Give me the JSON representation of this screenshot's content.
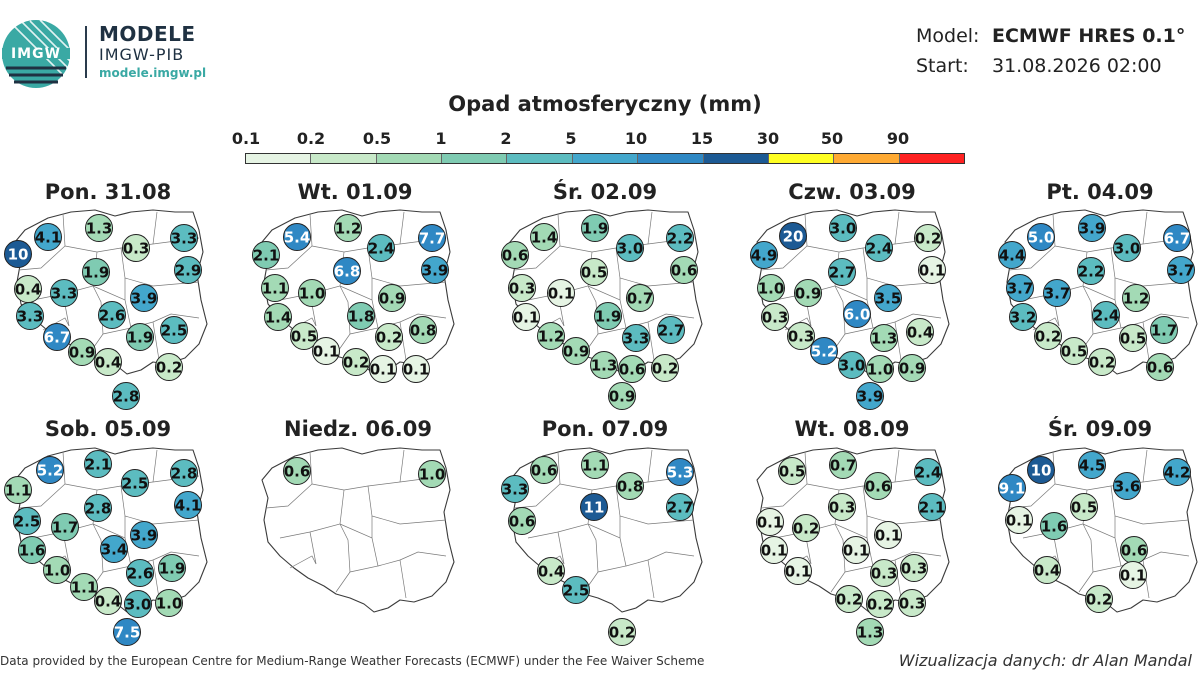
{
  "header": {
    "logo_text": "IMGW",
    "brand_title": "MODELE",
    "brand_subtitle": "IMGW-PIB",
    "brand_url": "modele.imgw.pl",
    "model_label": "Model:",
    "model_value": "ECMWF HRES 0.1°",
    "start_label": "Start:",
    "start_value": "31.08.2026 02:00"
  },
  "colorbar": {
    "title": "Opad atmosferyczny (mm)",
    "ticks": [
      "0.1",
      "0.2",
      "0.5",
      "1",
      "2",
      "5",
      "10",
      "15",
      "30",
      "50",
      "90"
    ],
    "colors": [
      "#e6f4e4",
      "#c8e9c9",
      "#a3dab5",
      "#7fcbb2",
      "#5cbcc0",
      "#43a7cc",
      "#2f88c4",
      "#1c5a94",
      "#ffff22",
      "#ffaa33",
      "#ff2222"
    ]
  },
  "panels": [
    {
      "title": "Pon. 31.08",
      "points": [
        {
          "v": "4.1",
          "c": "#43a7cc"
        },
        {
          "v": "1.3",
          "c": "#a3dab5"
        },
        {
          "v": "3.3",
          "c": "#5cbcc0"
        },
        {
          "v": "10",
          "c": "#1c5a94"
        },
        {
          "v": "0.3",
          "c": "#c8e9c9"
        },
        {
          "v": "2.9",
          "c": "#5cbcc0"
        },
        {
          "v": "0.4",
          "c": "#c8e9c9"
        },
        {
          "v": "1.9",
          "c": "#7fcbb2"
        },
        {
          "v": "3.3",
          "c": "#5cbcc0"
        },
        {
          "v": "3.3",
          "c": "#5cbcc0"
        },
        {
          "v": "2.6",
          "c": "#5cbcc0"
        },
        {
          "v": "3.9",
          "c": "#43a7cc"
        },
        {
          "v": "6.7",
          "c": "#2f88c4"
        },
        {
          "v": "1.9",
          "c": "#7fcbb2"
        },
        {
          "v": "2.5",
          "c": "#5cbcc0"
        },
        {
          "v": "0.9",
          "c": "#a3dab5"
        },
        {
          "v": "0.4",
          "c": "#c8e9c9"
        },
        {
          "v": "0.2",
          "c": "#c8e9c9"
        },
        {
          "v": "2.8",
          "c": "#5cbcc0"
        }
      ]
    },
    {
      "title": "Wt. 01.09",
      "points": [
        {
          "v": "5.4",
          "c": "#2f88c4"
        },
        {
          "v": "1.2",
          "c": "#a3dab5"
        },
        {
          "v": "7.7",
          "c": "#2f88c4"
        },
        {
          "v": "2.1",
          "c": "#7fcbb2"
        },
        {
          "v": "2.4",
          "c": "#5cbcc0"
        },
        {
          "v": "3.9",
          "c": "#43a7cc"
        },
        {
          "v": "6.8",
          "c": "#2f88c4"
        },
        {
          "v": "1.1",
          "c": "#a3dab5"
        },
        {
          "v": "1.0",
          "c": "#a3dab5"
        },
        {
          "v": "0.9",
          "c": "#a3dab5"
        },
        {
          "v": "1.4",
          "c": "#a3dab5"
        },
        {
          "v": "1.8",
          "c": "#7fcbb2"
        },
        {
          "v": "0.5",
          "c": "#c8e9c9"
        },
        {
          "v": "0.2",
          "c": "#c8e9c9"
        },
        {
          "v": "0.8",
          "c": "#a3dab5"
        },
        {
          "v": "0.1",
          "c": "#e6f4e4"
        },
        {
          "v": "0.2",
          "c": "#c8e9c9"
        },
        {
          "v": "0.1",
          "c": "#e6f4e4"
        },
        {
          "v": "0.1",
          "c": "#e6f4e4"
        }
      ]
    },
    {
      "title": "Śr. 02.09",
      "points": [
        {
          "v": "1.4",
          "c": "#a3dab5"
        },
        {
          "v": "1.9",
          "c": "#7fcbb2"
        },
        {
          "v": "2.2",
          "c": "#5cbcc0"
        },
        {
          "v": "0.6",
          "c": "#a3dab5"
        },
        {
          "v": "3.0",
          "c": "#5cbcc0"
        },
        {
          "v": "0.6",
          "c": "#a3dab5"
        },
        {
          "v": "0.5",
          "c": "#c8e9c9"
        },
        {
          "v": "0.3",
          "c": "#c8e9c9"
        },
        {
          "v": "0.1",
          "c": "#e6f4e4"
        },
        {
          "v": "0.7",
          "c": "#a3dab5"
        },
        {
          "v": "0.1",
          "c": "#e6f4e4"
        },
        {
          "v": "1.9",
          "c": "#7fcbb2"
        },
        {
          "v": "1.2",
          "c": "#a3dab5"
        },
        {
          "v": "3.3",
          "c": "#5cbcc0"
        },
        {
          "v": "2.7",
          "c": "#5cbcc0"
        },
        {
          "v": "0.9",
          "c": "#a3dab5"
        },
        {
          "v": "1.3",
          "c": "#a3dab5"
        },
        {
          "v": "0.6",
          "c": "#a3dab5"
        },
        {
          "v": "0.2",
          "c": "#c8e9c9"
        },
        {
          "v": "0.9",
          "c": "#a3dab5"
        }
      ]
    },
    {
      "title": "Czw. 03.09",
      "points": [
        {
          "v": "20",
          "c": "#1c5a94"
        },
        {
          "v": "3.0",
          "c": "#5cbcc0"
        },
        {
          "v": "0.2",
          "c": "#c8e9c9"
        },
        {
          "v": "4.9",
          "c": "#43a7cc"
        },
        {
          "v": "2.4",
          "c": "#5cbcc0"
        },
        {
          "v": "0.1",
          "c": "#e6f4e4"
        },
        {
          "v": "2.7",
          "c": "#5cbcc0"
        },
        {
          "v": "1.0",
          "c": "#a3dab5"
        },
        {
          "v": "0.9",
          "c": "#a3dab5"
        },
        {
          "v": "3.5",
          "c": "#43a7cc"
        },
        {
          "v": "0.3",
          "c": "#c8e9c9"
        },
        {
          "v": "6.0",
          "c": "#2f88c4"
        },
        {
          "v": "0.3",
          "c": "#c8e9c9"
        },
        {
          "v": "1.3",
          "c": "#a3dab5"
        },
        {
          "v": "0.4",
          "c": "#c8e9c9"
        },
        {
          "v": "5.2",
          "c": "#2f88c4"
        },
        {
          "v": "3.0",
          "c": "#5cbcc0"
        },
        {
          "v": "1.0",
          "c": "#a3dab5"
        },
        {
          "v": "0.9",
          "c": "#a3dab5"
        },
        {
          "v": "3.9",
          "c": "#43a7cc"
        }
      ]
    },
    {
      "title": "Pt. 04.09",
      "points": [
        {
          "v": "5.0",
          "c": "#2f88c4"
        },
        {
          "v": "3.9",
          "c": "#43a7cc"
        },
        {
          "v": "6.7",
          "c": "#2f88c4"
        },
        {
          "v": "4.4",
          "c": "#43a7cc"
        },
        {
          "v": "3.0",
          "c": "#5cbcc0"
        },
        {
          "v": "3.7",
          "c": "#43a7cc"
        },
        {
          "v": "2.2",
          "c": "#5cbcc0"
        },
        {
          "v": "3.7",
          "c": "#43a7cc"
        },
        {
          "v": "3.7",
          "c": "#43a7cc"
        },
        {
          "v": "1.2",
          "c": "#a3dab5"
        },
        {
          "v": "3.2",
          "c": "#5cbcc0"
        },
        {
          "v": "2.4",
          "c": "#5cbcc0"
        },
        {
          "v": "0.2",
          "c": "#c8e9c9"
        },
        {
          "v": "0.5",
          "c": "#c8e9c9"
        },
        {
          "v": "1.7",
          "c": "#7fcbb2"
        },
        {
          "v": "0.5",
          "c": "#c8e9c9"
        },
        {
          "v": "0.2",
          "c": "#c8e9c9"
        },
        {
          "v": "0.6",
          "c": "#a3dab5"
        }
      ]
    },
    {
      "title": "Sob. 05.09",
      "points": [
        {
          "v": "5.2",
          "c": "#2f88c4"
        },
        {
          "v": "2.1",
          "c": "#5cbcc0"
        },
        {
          "v": "2.8",
          "c": "#5cbcc0"
        },
        {
          "v": "1.1",
          "c": "#a3dab5"
        },
        {
          "v": "2.5",
          "c": "#5cbcc0"
        },
        {
          "v": "4.1",
          "c": "#43a7cc"
        },
        {
          "v": "2.5",
          "c": "#5cbcc0"
        },
        {
          "v": "1.7",
          "c": "#7fcbb2"
        },
        {
          "v": "2.8",
          "c": "#5cbcc0"
        },
        {
          "v": "1.6",
          "c": "#7fcbb2"
        },
        {
          "v": "3.9",
          "c": "#43a7cc"
        },
        {
          "v": "3.4",
          "c": "#43a7cc"
        },
        {
          "v": "1.0",
          "c": "#a3dab5"
        },
        {
          "v": "2.6",
          "c": "#5cbcc0"
        },
        {
          "v": "1.9",
          "c": "#7fcbb2"
        },
        {
          "v": "1.1",
          "c": "#a3dab5"
        },
        {
          "v": "0.4",
          "c": "#c8e9c9"
        },
        {
          "v": "3.0",
          "c": "#5cbcc0"
        },
        {
          "v": "1.0",
          "c": "#a3dab5"
        },
        {
          "v": "7.5",
          "c": "#2f88c4"
        }
      ]
    },
    {
      "title": "Niedz. 06.09",
      "points": [
        {
          "v": "0.6",
          "c": "#a3dab5"
        },
        {
          "v": "1.0",
          "c": "#a3dab5"
        }
      ]
    },
    {
      "title": "Pon. 07.09",
      "points": [
        {
          "v": "0.6",
          "c": "#a3dab5"
        },
        {
          "v": "1.1",
          "c": "#a3dab5"
        },
        {
          "v": "5.3",
          "c": "#2f88c4"
        },
        {
          "v": "3.3",
          "c": "#5cbcc0"
        },
        {
          "v": "0.8",
          "c": "#a3dab5"
        },
        {
          "v": "2.7",
          "c": "#5cbcc0"
        },
        {
          "v": "11",
          "c": "#1c5a94"
        },
        {
          "v": "0.6",
          "c": "#a3dab5"
        },
        {
          "v": "0.4",
          "c": "#c8e9c9"
        },
        {
          "v": "2.5",
          "c": "#5cbcc0"
        },
        {
          "v": "0.2",
          "c": "#c8e9c9"
        }
      ]
    },
    {
      "title": "Wt. 08.09",
      "points": [
        {
          "v": "0.5",
          "c": "#c8e9c9"
        },
        {
          "v": "0.7",
          "c": "#a3dab5"
        },
        {
          "v": "2.4",
          "c": "#5cbcc0"
        },
        {
          "v": "0.6",
          "c": "#a3dab5"
        },
        {
          "v": "0.3",
          "c": "#c8e9c9"
        },
        {
          "v": "2.1",
          "c": "#5cbcc0"
        },
        {
          "v": "0.1",
          "c": "#e6f4e4"
        },
        {
          "v": "0.2",
          "c": "#c8e9c9"
        },
        {
          "v": "0.1",
          "c": "#e6f4e4"
        },
        {
          "v": "0.1",
          "c": "#e6f4e4"
        },
        {
          "v": "0.1",
          "c": "#e6f4e4"
        },
        {
          "v": "0.1",
          "c": "#e6f4e4"
        },
        {
          "v": "0.3",
          "c": "#c8e9c9"
        },
        {
          "v": "0.3",
          "c": "#c8e9c9"
        },
        {
          "v": "0.2",
          "c": "#c8e9c9"
        },
        {
          "v": "0.2",
          "c": "#c8e9c9"
        },
        {
          "v": "0.3",
          "c": "#c8e9c9"
        },
        {
          "v": "1.3",
          "c": "#a3dab5"
        }
      ]
    },
    {
      "title": "Śr. 09.09",
      "points": [
        {
          "v": "10",
          "c": "#1c5a94"
        },
        {
          "v": "4.5",
          "c": "#43a7cc"
        },
        {
          "v": "4.2",
          "c": "#43a7cc"
        },
        {
          "v": "9.1",
          "c": "#2f88c4"
        },
        {
          "v": "3.6",
          "c": "#43a7cc"
        },
        {
          "v": "0.5",
          "c": "#c8e9c9"
        },
        {
          "v": "0.1",
          "c": "#e6f4e4"
        },
        {
          "v": "1.6",
          "c": "#7fcbb2"
        },
        {
          "v": "0.6",
          "c": "#a3dab5"
        },
        {
          "v": "0.4",
          "c": "#c8e9c9"
        },
        {
          "v": "0.1",
          "c": "#e6f4e4"
        },
        {
          "v": "0.2",
          "c": "#c8e9c9"
        }
      ]
    }
  ],
  "footer": {
    "source": "Data provided by the European Centre for Medium-Range Weather Forecasts (ECMWF) under the Fee Waiver Scheme",
    "credit": "Wizualizacja danych: dr Alan Mandal"
  }
}
